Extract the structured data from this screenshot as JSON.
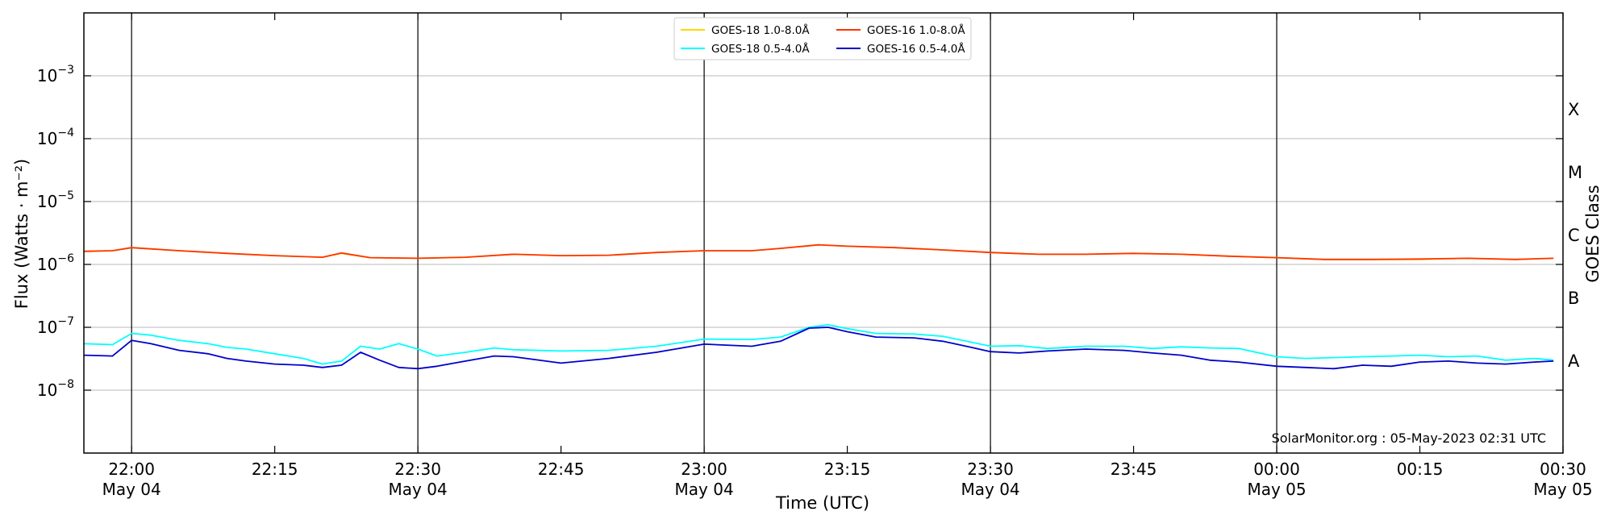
{
  "chart_data": {
    "type": "line",
    "xlabel": "Time (UTC)",
    "ylabel": "Flux (Watts · m⁻²)",
    "ylabel_right": "GOES Class",
    "yscale": "log",
    "ylim": [
      1e-09,
      0.01
    ],
    "xlim": [
      "2023-05-04 21:55",
      "2023-05-05 00:30"
    ],
    "grid": "horizontal at decades, vertical lines every 30 min",
    "legend_position": "top-center",
    "watermark": "SolarMonitor.org : 05-May-2023 02:31 UTC",
    "x_ticks": [
      {
        "t": "2023-05-04 22:00",
        "time": "22:00",
        "date": "May 04"
      },
      {
        "t": "2023-05-04 22:15",
        "time": "22:15",
        "date": ""
      },
      {
        "t": "2023-05-04 22:30",
        "time": "22:30",
        "date": "May 04"
      },
      {
        "t": "2023-05-04 22:45",
        "time": "22:45",
        "date": ""
      },
      {
        "t": "2023-05-04 23:00",
        "time": "23:00",
        "date": "May 04"
      },
      {
        "t": "2023-05-04 23:15",
        "time": "23:15",
        "date": ""
      },
      {
        "t": "2023-05-04 23:30",
        "time": "23:30",
        "date": "May 04"
      },
      {
        "t": "2023-05-04 23:45",
        "time": "23:45",
        "date": ""
      },
      {
        "t": "2023-05-05 00:00",
        "time": "00:00",
        "date": "May 05"
      },
      {
        "t": "2023-05-05 00:15",
        "time": "00:15",
        "date": ""
      },
      {
        "t": "2023-05-05 00:30",
        "time": "00:30",
        "date": "May 05"
      }
    ],
    "y_ticks": [
      {
        "value": 1e-08,
        "base": "10",
        "exp": "−8"
      },
      {
        "value": 1e-07,
        "base": "10",
        "exp": "−7"
      },
      {
        "value": 1e-06,
        "base": "10",
        "exp": "−6"
      },
      {
        "value": 1e-05,
        "base": "10",
        "exp": "−5"
      },
      {
        "value": 0.0001,
        "base": "10",
        "exp": "−4"
      },
      {
        "value": 0.001,
        "base": "10",
        "exp": "−3"
      }
    ],
    "goes_classes": [
      {
        "label": "A",
        "value": 3e-08
      },
      {
        "label": "B",
        "value": 3e-07
      },
      {
        "label": "C",
        "value": 3e-06
      },
      {
        "label": "M",
        "value": 3e-05
      },
      {
        "label": "X",
        "value": 0.0003
      }
    ],
    "series": [
      {
        "name": "GOES-18 1.0-8.0Å",
        "color": "#ffd700",
        "x": [
          "2023-05-04 21:55",
          "2023-05-04 21:58",
          "2023-05-04 22:00",
          "2023-05-04 22:05",
          "2023-05-04 22:10",
          "2023-05-04 22:15",
          "2023-05-04 22:20",
          "2023-05-04 22:22",
          "2023-05-04 22:25",
          "2023-05-04 22:30",
          "2023-05-04 22:35",
          "2023-05-04 22:40",
          "2023-05-04 22:45",
          "2023-05-04 22:50",
          "2023-05-04 22:55",
          "2023-05-04 23:00",
          "2023-05-04 23:05",
          "2023-05-04 23:08",
          "2023-05-04 23:12",
          "2023-05-04 23:15",
          "2023-05-04 23:20",
          "2023-05-04 23:25",
          "2023-05-04 23:30",
          "2023-05-04 23:35",
          "2023-05-04 23:40",
          "2023-05-04 23:45",
          "2023-05-04 23:50",
          "2023-05-04 23:55",
          "2023-05-05 00:00",
          "2023-05-05 00:05",
          "2023-05-05 00:10",
          "2023-05-05 00:15",
          "2023-05-05 00:20",
          "2023-05-05 00:25",
          "2023-05-05 00:29"
        ],
        "y": [
          1.6e-06,
          1.65e-06,
          1.85e-06,
          1.65e-06,
          1.5e-06,
          1.38e-06,
          1.3e-06,
          1.5e-06,
          1.28e-06,
          1.25e-06,
          1.3e-06,
          1.45e-06,
          1.38e-06,
          1.4e-06,
          1.55e-06,
          1.65e-06,
          1.65e-06,
          1.8e-06,
          2.05e-06,
          1.95e-06,
          1.85e-06,
          1.7e-06,
          1.55e-06,
          1.45e-06,
          1.45e-06,
          1.5e-06,
          1.45e-06,
          1.35e-06,
          1.28e-06,
          1.2e-06,
          1.2e-06,
          1.2e-06,
          1.25e-06,
          1.2e-06,
          1.25e-06
        ]
      },
      {
        "name": "GOES-18 0.5-4.0Å",
        "color": "#00ffff",
        "x": [
          "2023-05-04 21:55",
          "2023-05-04 21:58",
          "2023-05-04 22:00",
          "2023-05-04 22:02",
          "2023-05-04 22:05",
          "2023-05-04 22:08",
          "2023-05-04 22:10",
          "2023-05-04 22:12",
          "2023-05-04 22:15",
          "2023-05-04 22:18",
          "2023-05-04 22:20",
          "2023-05-04 22:22",
          "2023-05-04 22:24",
          "2023-05-04 22:26",
          "2023-05-04 22:28",
          "2023-05-04 22:30",
          "2023-05-04 22:32",
          "2023-05-04 22:35",
          "2023-05-04 22:38",
          "2023-05-04 22:40",
          "2023-05-04 22:45",
          "2023-05-04 22:50",
          "2023-05-04 22:55",
          "2023-05-04 23:00",
          "2023-05-04 23:05",
          "2023-05-04 23:08",
          "2023-05-04 23:11",
          "2023-05-04 23:13",
          "2023-05-04 23:15",
          "2023-05-04 23:18",
          "2023-05-04 23:22",
          "2023-05-04 23:25",
          "2023-05-04 23:28",
          "2023-05-04 23:30",
          "2023-05-04 23:33",
          "2023-05-04 23:36",
          "2023-05-04 23:40",
          "2023-05-04 23:44",
          "2023-05-04 23:47",
          "2023-05-04 23:50",
          "2023-05-04 23:53",
          "2023-05-04 23:56",
          "2023-05-05 00:00",
          "2023-05-05 00:03",
          "2023-05-05 00:06",
          "2023-05-05 00:09",
          "2023-05-05 00:12",
          "2023-05-05 00:15",
          "2023-05-05 00:18",
          "2023-05-05 00:21",
          "2023-05-05 00:24",
          "2023-05-05 00:27",
          "2023-05-05 00:29"
        ],
        "y": [
          5.5e-08,
          5.3e-08,
          8e-08,
          7.5e-08,
          6.2e-08,
          5.5e-08,
          4.8e-08,
          4.5e-08,
          3.8e-08,
          3.2e-08,
          2.6e-08,
          2.9e-08,
          5e-08,
          4.5e-08,
          5.5e-08,
          4.5e-08,
          3.5e-08,
          4e-08,
          4.7e-08,
          4.4e-08,
          4.2e-08,
          4.3e-08,
          5e-08,
          6.5e-08,
          6.4e-08,
          7e-08,
          1e-07,
          1.1e-07,
          9.5e-08,
          8e-08,
          7.8e-08,
          7.2e-08,
          5.8e-08,
          5e-08,
          5.1e-08,
          4.6e-08,
          5e-08,
          5e-08,
          4.6e-08,
          4.9e-08,
          4.7e-08,
          4.6e-08,
          3.4e-08,
          3.2e-08,
          3.3e-08,
          3.4e-08,
          3.5e-08,
          3.6e-08,
          3.4e-08,
          3.5e-08,
          3e-08,
          3.2e-08,
          3e-08
        ]
      },
      {
        "name": "GOES-16 1.0-8.0Å",
        "color": "#ff3300",
        "x": [
          "2023-05-04 21:55",
          "2023-05-04 21:58",
          "2023-05-04 22:00",
          "2023-05-04 22:05",
          "2023-05-04 22:10",
          "2023-05-04 22:15",
          "2023-05-04 22:20",
          "2023-05-04 22:22",
          "2023-05-04 22:25",
          "2023-05-04 22:30",
          "2023-05-04 22:35",
          "2023-05-04 22:40",
          "2023-05-04 22:45",
          "2023-05-04 22:50",
          "2023-05-04 22:55",
          "2023-05-04 23:00",
          "2023-05-04 23:05",
          "2023-05-04 23:08",
          "2023-05-04 23:12",
          "2023-05-04 23:15",
          "2023-05-04 23:20",
          "2023-05-04 23:25",
          "2023-05-04 23:30",
          "2023-05-04 23:35",
          "2023-05-04 23:40",
          "2023-05-04 23:45",
          "2023-05-04 23:50",
          "2023-05-04 23:55",
          "2023-05-05 00:00",
          "2023-05-05 00:05",
          "2023-05-05 00:10",
          "2023-05-05 00:15",
          "2023-05-05 00:20",
          "2023-05-05 00:25",
          "2023-05-05 00:29"
        ],
        "y": [
          1.62e-06,
          1.65e-06,
          1.85e-06,
          1.65e-06,
          1.5e-06,
          1.38e-06,
          1.3e-06,
          1.52e-06,
          1.28e-06,
          1.25e-06,
          1.3e-06,
          1.45e-06,
          1.38e-06,
          1.4e-06,
          1.55e-06,
          1.65e-06,
          1.65e-06,
          1.8e-06,
          2.05e-06,
          1.95e-06,
          1.85e-06,
          1.7e-06,
          1.55e-06,
          1.45e-06,
          1.45e-06,
          1.5e-06,
          1.45e-06,
          1.35e-06,
          1.28e-06,
          1.2e-06,
          1.2e-06,
          1.22e-06,
          1.25e-06,
          1.2e-06,
          1.25e-06
        ]
      },
      {
        "name": "GOES-16 0.5-4.0Å",
        "color": "#0000cc",
        "x": [
          "2023-05-04 21:55",
          "2023-05-04 21:58",
          "2023-05-04 22:00",
          "2023-05-04 22:02",
          "2023-05-04 22:05",
          "2023-05-04 22:08",
          "2023-05-04 22:10",
          "2023-05-04 22:12",
          "2023-05-04 22:15",
          "2023-05-04 22:18",
          "2023-05-04 22:20",
          "2023-05-04 22:22",
          "2023-05-04 22:24",
          "2023-05-04 22:26",
          "2023-05-04 22:28",
          "2023-05-04 22:30",
          "2023-05-04 22:32",
          "2023-05-04 22:35",
          "2023-05-04 22:38",
          "2023-05-04 22:40",
          "2023-05-04 22:45",
          "2023-05-04 22:50",
          "2023-05-04 22:55",
          "2023-05-04 23:00",
          "2023-05-04 23:05",
          "2023-05-04 23:08",
          "2023-05-04 23:11",
          "2023-05-04 23:13",
          "2023-05-04 23:15",
          "2023-05-04 23:18",
          "2023-05-04 23:22",
          "2023-05-04 23:25",
          "2023-05-04 23:28",
          "2023-05-04 23:30",
          "2023-05-04 23:33",
          "2023-05-04 23:36",
          "2023-05-04 23:40",
          "2023-05-04 23:44",
          "2023-05-04 23:47",
          "2023-05-04 23:50",
          "2023-05-04 23:53",
          "2023-05-04 23:56",
          "2023-05-05 00:00",
          "2023-05-05 00:03",
          "2023-05-05 00:06",
          "2023-05-05 00:09",
          "2023-05-05 00:12",
          "2023-05-05 00:15",
          "2023-05-05 00:18",
          "2023-05-05 00:21",
          "2023-05-05 00:24",
          "2023-05-05 00:27",
          "2023-05-05 00:29"
        ],
        "y": [
          3.6e-08,
          3.5e-08,
          6.2e-08,
          5.5e-08,
          4.3e-08,
          3.8e-08,
          3.2e-08,
          2.9e-08,
          2.6e-08,
          2.5e-08,
          2.3e-08,
          2.5e-08,
          4e-08,
          3e-08,
          2.3e-08,
          2.2e-08,
          2.4e-08,
          2.9e-08,
          3.5e-08,
          3.4e-08,
          2.7e-08,
          3.2e-08,
          4e-08,
          5.4e-08,
          5e-08,
          6e-08,
          9.7e-08,
          1e-07,
          8.5e-08,
          7e-08,
          6.8e-08,
          6e-08,
          4.8e-08,
          4.1e-08,
          3.9e-08,
          4.2e-08,
          4.5e-08,
          4.3e-08,
          3.9e-08,
          3.6e-08,
          3e-08,
          2.8e-08,
          2.4e-08,
          2.3e-08,
          2.2e-08,
          2.5e-08,
          2.4e-08,
          2.8e-08,
          2.9e-08,
          2.7e-08,
          2.6e-08,
          2.8e-08,
          2.9e-08
        ]
      }
    ]
  }
}
